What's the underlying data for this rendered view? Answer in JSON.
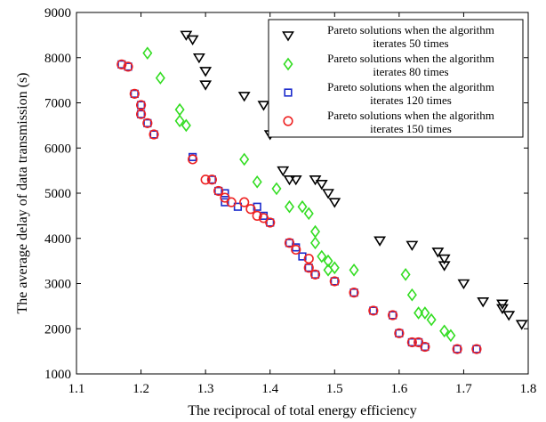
{
  "chart_data": {
    "type": "scatter",
    "xlabel": "The reciprocal of total energy efficiency",
    "ylabel": "The average delay of data transmission (s)",
    "xlim": [
      1.1,
      1.8
    ],
    "ylim": [
      1000,
      9000
    ],
    "xticks": [
      "1.1",
      "1.2",
      "1.3",
      "1.4",
      "1.5",
      "1.6",
      "1.7",
      "1.8"
    ],
    "yticks": [
      "1000",
      "2000",
      "3000",
      "4000",
      "5000",
      "6000",
      "7000",
      "8000",
      "9000"
    ],
    "grid": false,
    "legend_position": "top-right",
    "series": [
      {
        "name": "Pareto solutions when the algorithm iterates 50 times",
        "line1": "Pareto solutions when the algorithm",
        "line2": "iterates 50 times",
        "marker": "triangle-down",
        "color": "#000000",
        "points": [
          [
            1.27,
            8500
          ],
          [
            1.28,
            8400
          ],
          [
            1.29,
            8000
          ],
          [
            1.3,
            7700
          ],
          [
            1.3,
            7400
          ],
          [
            1.36,
            7150
          ],
          [
            1.39,
            6950
          ],
          [
            1.4,
            6300
          ],
          [
            1.42,
            5500
          ],
          [
            1.43,
            5300
          ],
          [
            1.44,
            5300
          ],
          [
            1.47,
            5300
          ],
          [
            1.48,
            5200
          ],
          [
            1.49,
            5000
          ],
          [
            1.5,
            4800
          ],
          [
            1.57,
            3950
          ],
          [
            1.62,
            3850
          ],
          [
            1.66,
            3700
          ],
          [
            1.67,
            3550
          ],
          [
            1.67,
            3400
          ],
          [
            1.7,
            3000
          ],
          [
            1.73,
            2600
          ],
          [
            1.76,
            2550
          ],
          [
            1.76,
            2450
          ],
          [
            1.77,
            2300
          ],
          [
            1.79,
            2100
          ]
        ]
      },
      {
        "name": "Pareto solutions when the algorithm iterates 80 times",
        "line1": "Pareto solutions when the algorithm",
        "line2": "iterates 80 times",
        "marker": "diamond",
        "color": "#33dd22",
        "points": [
          [
            1.21,
            8100
          ],
          [
            1.23,
            7550
          ],
          [
            1.26,
            6850
          ],
          [
            1.26,
            6600
          ],
          [
            1.27,
            6500
          ],
          [
            1.36,
            5750
          ],
          [
            1.38,
            5250
          ],
          [
            1.41,
            5100
          ],
          [
            1.43,
            4700
          ],
          [
            1.45,
            4700
          ],
          [
            1.46,
            4550
          ],
          [
            1.47,
            4150
          ],
          [
            1.47,
            3900
          ],
          [
            1.48,
            3600
          ],
          [
            1.49,
            3500
          ],
          [
            1.49,
            3300
          ],
          [
            1.5,
            3350
          ],
          [
            1.53,
            3300
          ],
          [
            1.61,
            3200
          ],
          [
            1.62,
            2750
          ],
          [
            1.63,
            2350
          ],
          [
            1.64,
            2350
          ],
          [
            1.65,
            2200
          ],
          [
            1.67,
            1950
          ],
          [
            1.68,
            1850
          ]
        ]
      },
      {
        "name": "Pareto solutions when the algorithm iterates 120 times",
        "line1": "Pareto solutions when the algorithm",
        "line2": "iterates 120 times",
        "marker": "square",
        "color": "#1a2acc",
        "points": [
          [
            1.17,
            7850
          ],
          [
            1.18,
            7800
          ],
          [
            1.19,
            7200
          ],
          [
            1.2,
            6950
          ],
          [
            1.2,
            6750
          ],
          [
            1.21,
            6550
          ],
          [
            1.22,
            6300
          ],
          [
            1.28,
            5800
          ],
          [
            1.31,
            5300
          ],
          [
            1.32,
            5050
          ],
          [
            1.33,
            5000
          ],
          [
            1.33,
            4800
          ],
          [
            1.35,
            4700
          ],
          [
            1.38,
            4700
          ],
          [
            1.39,
            4500
          ],
          [
            1.4,
            4350
          ],
          [
            1.43,
            3900
          ],
          [
            1.44,
            3800
          ],
          [
            1.45,
            3600
          ],
          [
            1.46,
            3350
          ],
          [
            1.47,
            3200
          ],
          [
            1.5,
            3050
          ],
          [
            1.53,
            2800
          ],
          [
            1.56,
            2400
          ],
          [
            1.59,
            2300
          ],
          [
            1.6,
            1900
          ],
          [
            1.62,
            1700
          ],
          [
            1.63,
            1700
          ],
          [
            1.64,
            1600
          ],
          [
            1.69,
            1550
          ],
          [
            1.72,
            1550
          ]
        ]
      },
      {
        "name": "Pareto solutions when the algorithm iterates 150 times",
        "line1": "Pareto solutions when the algorithm",
        "line2": "iterates 150 times",
        "marker": "circle",
        "color": "#ee2222",
        "points": [
          [
            1.17,
            7850
          ],
          [
            1.18,
            7800
          ],
          [
            1.19,
            7200
          ],
          [
            1.2,
            6950
          ],
          [
            1.2,
            6750
          ],
          [
            1.21,
            6550
          ],
          [
            1.22,
            6300
          ],
          [
            1.28,
            5750
          ],
          [
            1.3,
            5300
          ],
          [
            1.31,
            5300
          ],
          [
            1.32,
            5050
          ],
          [
            1.33,
            4900
          ],
          [
            1.34,
            4800
          ],
          [
            1.36,
            4800
          ],
          [
            1.37,
            4650
          ],
          [
            1.38,
            4500
          ],
          [
            1.39,
            4450
          ],
          [
            1.4,
            4350
          ],
          [
            1.43,
            3900
          ],
          [
            1.44,
            3750
          ],
          [
            1.46,
            3550
          ],
          [
            1.46,
            3350
          ],
          [
            1.47,
            3200
          ],
          [
            1.5,
            3050
          ],
          [
            1.53,
            2800
          ],
          [
            1.56,
            2400
          ],
          [
            1.59,
            2300
          ],
          [
            1.6,
            1900
          ],
          [
            1.62,
            1700
          ],
          [
            1.63,
            1700
          ],
          [
            1.64,
            1600
          ],
          [
            1.69,
            1550
          ],
          [
            1.72,
            1550
          ]
        ]
      }
    ]
  }
}
